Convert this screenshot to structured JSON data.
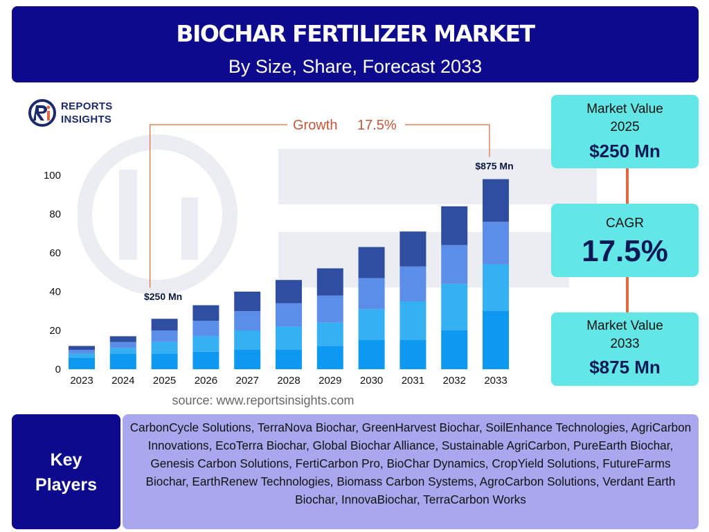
{
  "header": {
    "title": "BIOCHAR FERTILIZER MARKET",
    "subtitle": "By Size, Share, Forecast 2033"
  },
  "logo": {
    "line1": "REPORTS",
    "line2": "INSIGHTS"
  },
  "chart_data": {
    "type": "bar",
    "stacked": true,
    "categories": [
      "2023",
      "2024",
      "2025",
      "2026",
      "2027",
      "2028",
      "2029",
      "2030",
      "2031",
      "2032",
      "2033"
    ],
    "series": [
      {
        "color": "#0d99f0",
        "values": [
          6,
          8,
          8,
          9,
          10,
          10,
          12,
          15,
          15,
          20,
          30
        ]
      },
      {
        "color": "#35b0f3",
        "values": [
          2,
          3,
          6,
          8,
          10,
          12,
          12,
          16,
          20,
          24,
          24
        ]
      },
      {
        "color": "#5a8ee8",
        "values": [
          2,
          3,
          6,
          8,
          10,
          12,
          14,
          16,
          18,
          20,
          22
        ]
      },
      {
        "color": "#2f4ea0",
        "values": [
          2,
          3,
          6,
          8,
          10,
          12,
          14,
          16,
          18,
          20,
          22
        ]
      }
    ],
    "yticks": [
      0,
      20,
      40,
      60,
      80,
      100
    ],
    "ylim": [
      0,
      100
    ],
    "annotations": [
      {
        "category": "2025",
        "text": "$250 Mn"
      },
      {
        "category": "2033",
        "text": "$875 Mn"
      }
    ],
    "growth_label": "Growth",
    "growth_value": "17.5%",
    "grid": false,
    "legend": false
  },
  "source": "source: www.reportsinsights.com",
  "kpis": {
    "value_2025_label": "Market Value\n2025",
    "value_2025": "$250 Mn",
    "cagr_label": "CAGR",
    "cagr_value": "17.5%",
    "value_2033_label": "Market Value\n2033",
    "value_2033": "$875 Mn"
  },
  "key_players": {
    "heading_line1": "Key",
    "heading_line2": "Players",
    "list": "CarbonCycle Solutions, TerraNova Biochar, GreenHarvest Biochar, SoilEnhance Technologies, AgriCarbon Innovations, EcoTerra Biochar, Global Biochar Alliance, Sustainable AgriCarbon, PureEarth Biochar, Genesis Carbon Solutions, FertiCarbon Pro, BioChar Dynamics, CropYield Solutions, FutureFarms Biochar, EarthRenew Technologies, Biomass Carbon Systems, AgroCarbon Solutions, Verdant Earth Biochar, InnovaBiochar, TerraCarbon Works"
  }
}
